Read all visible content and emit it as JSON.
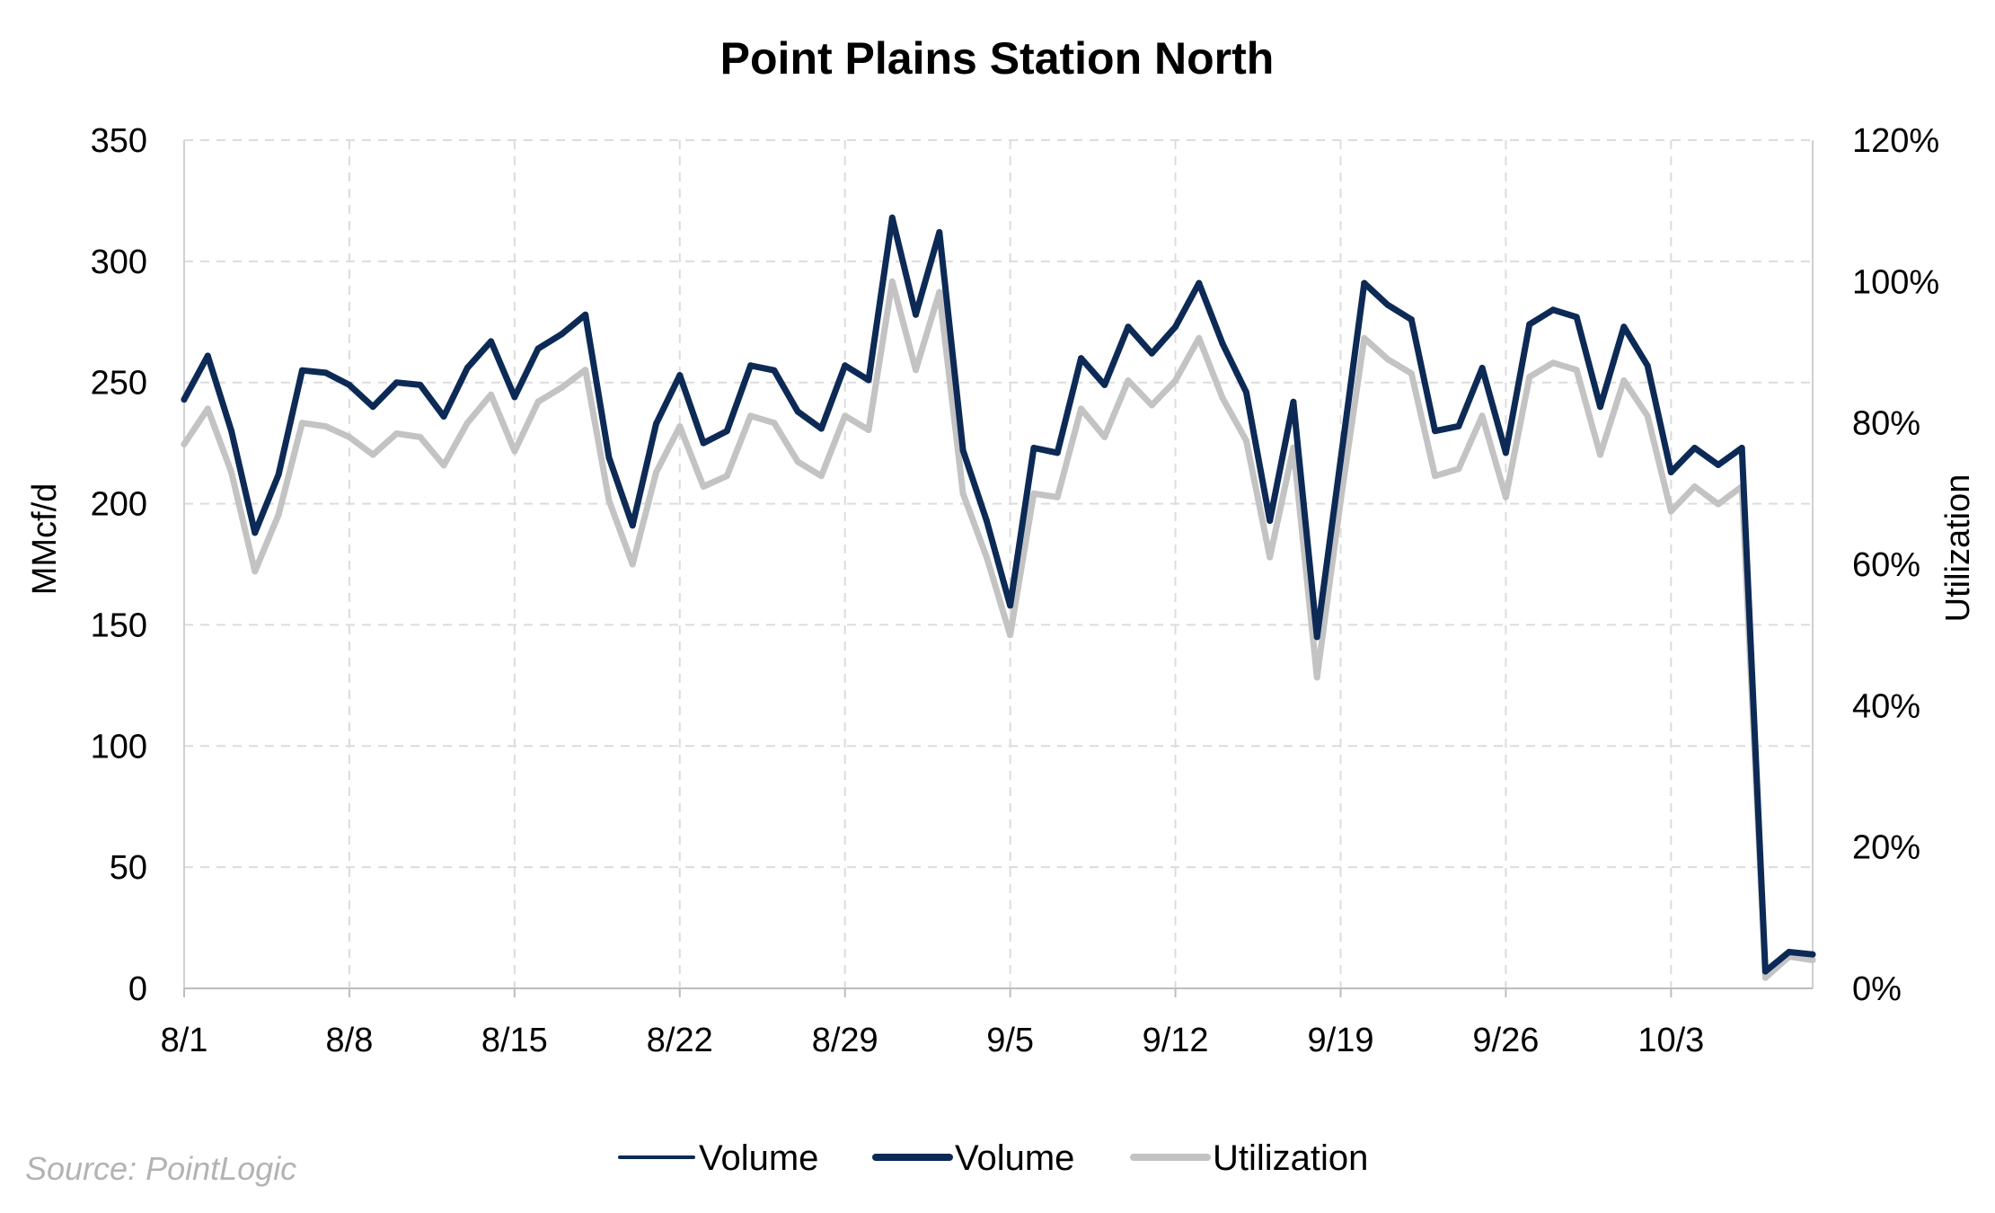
{
  "chart_data": {
    "type": "line",
    "title": "Point Plains Station North",
    "ylabel": "MMcf/d",
    "y2label": "Utilization",
    "ylim": [
      0,
      350
    ],
    "y2lim": [
      0,
      1.2
    ],
    "yticks": [
      "0",
      "50",
      "100",
      "150",
      "200",
      "250",
      "300",
      "350"
    ],
    "y2ticks": [
      "0%",
      "20%",
      "40%",
      "60%",
      "80%",
      "100%",
      "120%"
    ],
    "xticks": [
      "8/1",
      "8/8",
      "8/15",
      "8/22",
      "8/29",
      "9/5",
      "9/12",
      "9/19",
      "9/26",
      "10/3"
    ],
    "grid": true,
    "legend_position": "bottom",
    "legend": [
      {
        "label": "Volume",
        "style": "thin",
        "color": "#0c2a55"
      },
      {
        "label": "Volume",
        "style": "thick",
        "color": "#0c2a55"
      },
      {
        "label": "Utilization",
        "style": "thick",
        "color": "#c3c3c3"
      }
    ],
    "x_dates": [
      "8/1",
      "8/2",
      "8/3",
      "8/4",
      "8/5",
      "8/6",
      "8/7",
      "8/8",
      "8/9",
      "8/10",
      "8/11",
      "8/12",
      "8/13",
      "8/14",
      "8/15",
      "8/16",
      "8/17",
      "8/18",
      "8/19",
      "8/20",
      "8/21",
      "8/22",
      "8/23",
      "8/24",
      "8/25",
      "8/26",
      "8/27",
      "8/28",
      "8/29",
      "8/30",
      "8/31",
      "9/1",
      "9/2",
      "9/3",
      "9/4",
      "9/5",
      "9/6",
      "9/7",
      "9/8",
      "9/9",
      "9/10",
      "9/11",
      "9/12",
      "9/13",
      "9/14",
      "9/15",
      "9/16",
      "9/17",
      "9/18",
      "9/19",
      "9/20",
      "9/21",
      "9/22",
      "9/23",
      "9/24",
      "9/25",
      "9/26",
      "9/27",
      "9/28",
      "9/29",
      "9/30",
      "10/1",
      "10/2",
      "10/3",
      "10/4",
      "10/5",
      "10/6",
      "10/7",
      "10/8",
      "10/9"
    ],
    "series": [
      {
        "name": "Volume",
        "axis": "left",
        "color": "#0c2a55",
        "values": [
          243,
          261,
          230,
          188,
          212,
          255,
          254,
          249,
          240,
          250,
          249,
          236,
          256,
          267,
          244,
          264,
          270,
          278,
          219,
          191,
          233,
          253,
          225,
          230,
          257,
          255,
          238,
          231,
          257,
          251,
          318,
          278,
          312,
          222,
          193,
          158,
          223,
          221,
          260,
          249,
          273,
          262,
          273,
          291,
          266,
          246,
          193,
          242,
          145,
          218,
          291,
          282,
          276,
          230,
          232,
          256,
          221,
          274,
          280,
          277,
          240,
          273,
          257,
          213,
          223,
          216,
          223,
          7,
          15,
          14
        ]
      },
      {
        "name": "Utilization",
        "axis": "right",
        "color": "#c3c3c3",
        "values": [
          0.77,
          0.82,
          0.73,
          0.59,
          0.67,
          0.8,
          0.795,
          0.78,
          0.755,
          0.785,
          0.78,
          0.74,
          0.8,
          0.84,
          0.76,
          0.83,
          0.85,
          0.875,
          0.69,
          0.6,
          0.73,
          0.795,
          0.71,
          0.725,
          0.81,
          0.8,
          0.745,
          0.725,
          0.81,
          0.79,
          1.0,
          0.875,
          0.985,
          0.7,
          0.61,
          0.5,
          0.7,
          0.695,
          0.82,
          0.78,
          0.86,
          0.825,
          0.86,
          0.92,
          0.835,
          0.775,
          0.61,
          0.765,
          0.44,
          0.69,
          0.92,
          0.89,
          0.87,
          0.725,
          0.735,
          0.81,
          0.695,
          0.865,
          0.885,
          0.875,
          0.755,
          0.86,
          0.81,
          0.675,
          0.71,
          0.685,
          0.71,
          0.015,
          0.045,
          0.04
        ]
      }
    ],
    "source": "Source: PointLogic"
  }
}
